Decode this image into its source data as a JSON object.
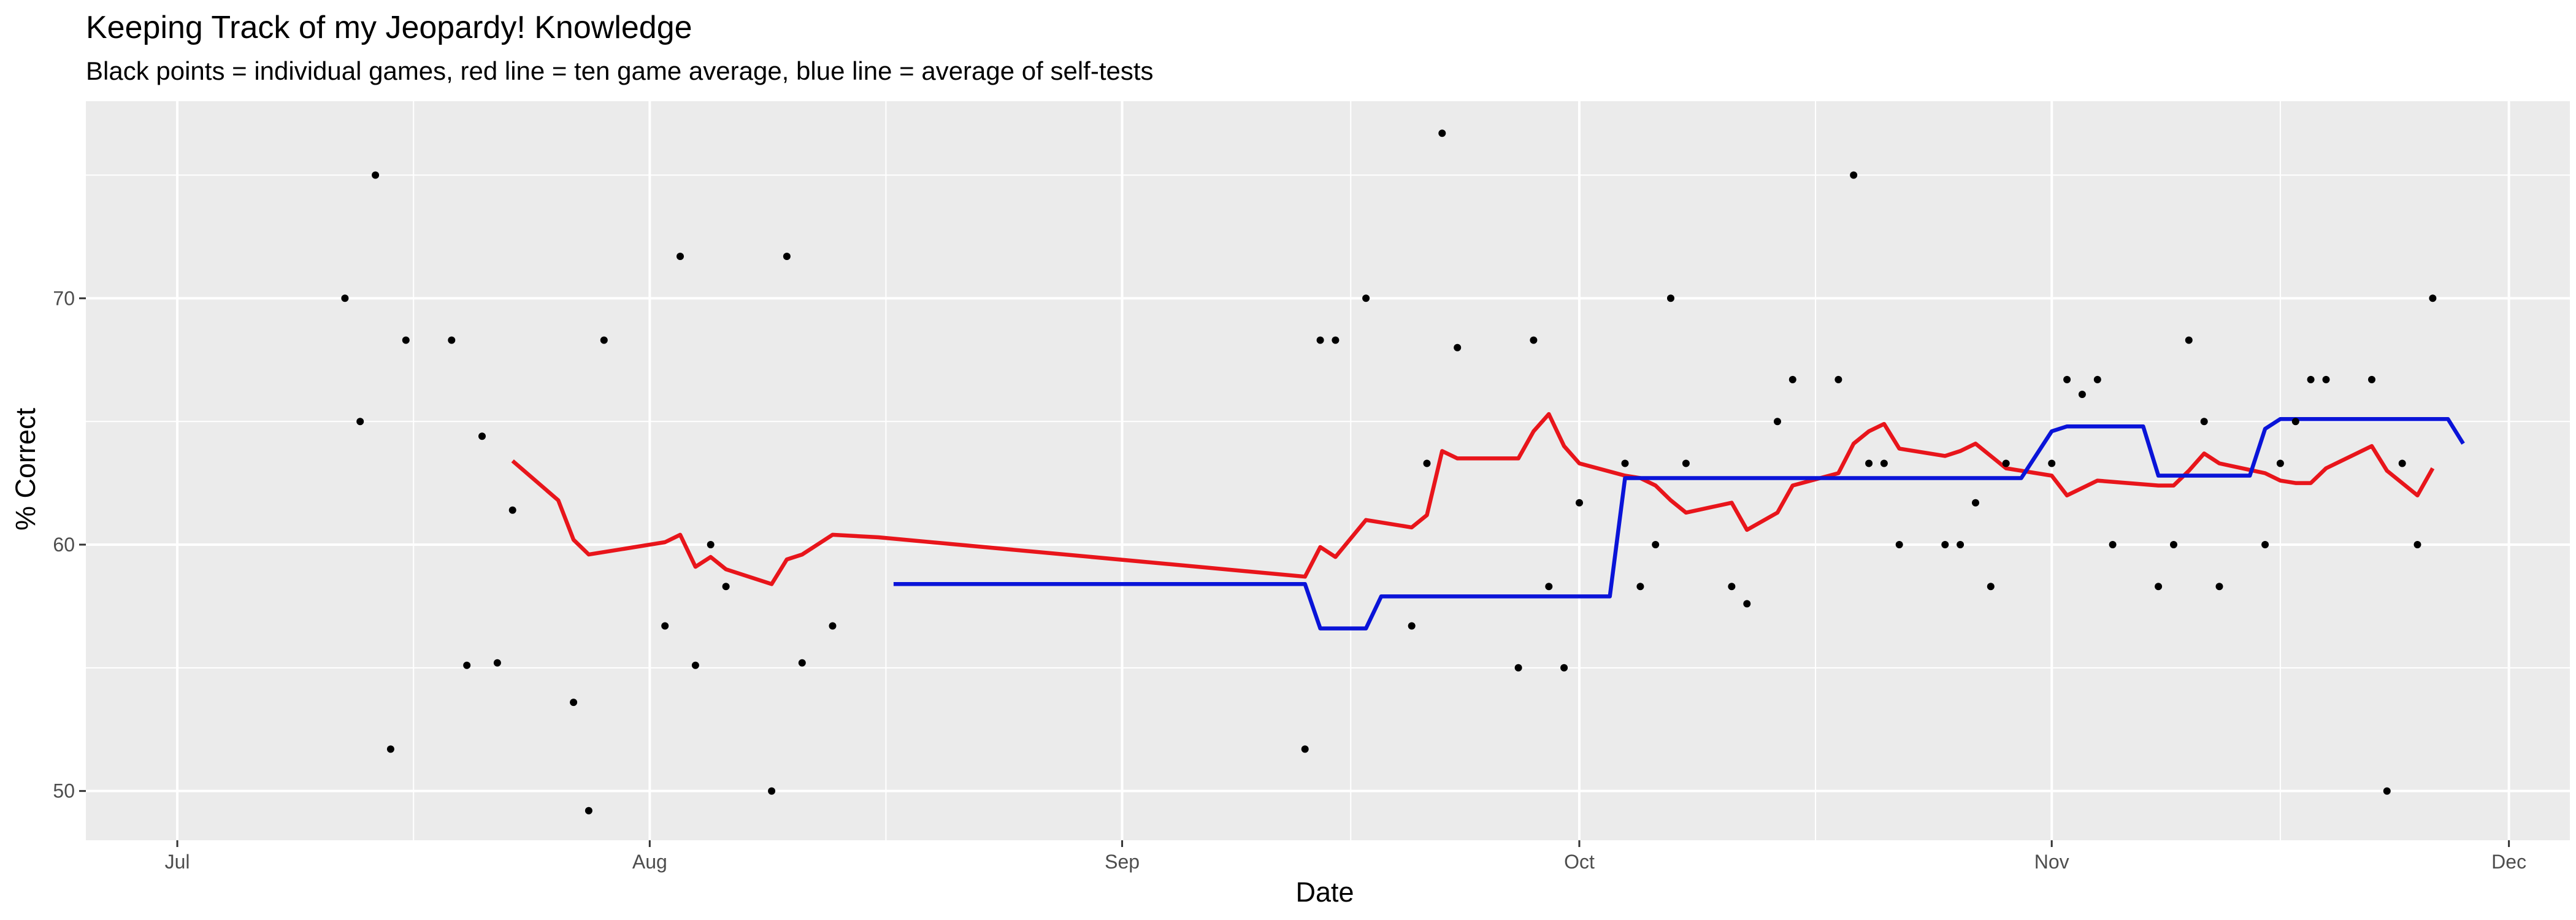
{
  "chart_data": {
    "type": "scatter",
    "title": "Keeping Track of my Jeopardy! Knowledge",
    "subtitle": "Black points = individual games, red line = ten game average, blue line = average of self-tests",
    "xlabel": "Date",
    "ylabel": "% Correct",
    "xlim": [
      "2023-06-25",
      "2023-12-05"
    ],
    "ylim": [
      48,
      78
    ],
    "x_ticks": [
      {
        "label": "Jul",
        "date": "2023-07-01"
      },
      {
        "label": "Aug",
        "date": "2023-08-01"
      },
      {
        "label": "Sep",
        "date": "2023-09-01"
      },
      {
        "label": "Oct",
        "date": "2023-10-01"
      },
      {
        "label": "Nov",
        "date": "2023-11-01"
      },
      {
        "label": "Dec",
        "date": "2023-12-01"
      }
    ],
    "y_ticks": [
      50,
      60,
      70
    ],
    "grid": true,
    "background_color": "#ebebeb",
    "grid_color": "#ffffff",
    "colors": {
      "points": "#000000",
      "ten_game_average": "#e8151b",
      "self_test_average": "#0a14d8"
    },
    "series": [
      {
        "kind": "points",
        "points": [
          [
            "2023-07-12",
            70.0
          ],
          [
            "2023-07-13",
            65.0
          ],
          [
            "2023-07-14",
            75.0
          ],
          [
            "2023-07-15",
            51.7
          ],
          [
            "2023-07-16",
            68.3
          ],
          [
            "2023-07-19",
            68.3
          ],
          [
            "2023-07-20",
            55.1
          ],
          [
            "2023-07-21",
            64.4
          ],
          [
            "2023-07-22",
            55.2
          ],
          [
            "2023-07-23",
            61.4
          ],
          [
            "2023-07-27",
            53.6
          ],
          [
            "2023-07-28",
            49.2
          ],
          [
            "2023-07-29",
            68.3
          ],
          [
            "2023-08-02",
            56.7
          ],
          [
            "2023-08-03",
            71.7
          ],
          [
            "2023-08-04",
            55.1
          ],
          [
            "2023-08-05",
            60.0
          ],
          [
            "2023-08-06",
            58.3
          ],
          [
            "2023-08-09",
            50.0
          ],
          [
            "2023-08-10",
            71.7
          ],
          [
            "2023-08-11",
            55.2
          ],
          [
            "2023-08-13",
            56.7
          ],
          [
            "2023-09-13",
            51.7
          ],
          [
            "2023-09-14",
            68.3
          ],
          [
            "2023-09-15",
            68.3
          ],
          [
            "2023-09-17",
            70.0
          ],
          [
            "2023-09-20",
            56.7
          ],
          [
            "2023-09-21",
            63.3
          ],
          [
            "2023-09-22",
            76.7
          ],
          [
            "2023-09-23",
            68.0
          ],
          [
            "2023-09-27",
            55.0
          ],
          [
            "2023-09-28",
            68.3
          ],
          [
            "2023-09-29",
            58.3
          ],
          [
            "2023-09-30",
            55.0
          ],
          [
            "2023-10-01",
            61.7
          ],
          [
            "2023-10-04",
            63.3
          ],
          [
            "2023-10-05",
            58.3
          ],
          [
            "2023-10-06",
            60.0
          ],
          [
            "2023-10-07",
            70.0
          ],
          [
            "2023-10-08",
            63.3
          ],
          [
            "2023-10-11",
            58.3
          ],
          [
            "2023-10-12",
            57.6
          ],
          [
            "2023-10-14",
            65.0
          ],
          [
            "2023-10-15",
            66.7
          ],
          [
            "2023-10-18",
            66.7
          ],
          [
            "2023-10-19",
            75.0
          ],
          [
            "2023-10-20",
            63.3
          ],
          [
            "2023-10-21",
            63.3
          ],
          [
            "2023-10-22",
            60.0
          ],
          [
            "2023-10-25",
            60.0
          ],
          [
            "2023-10-26",
            60.0
          ],
          [
            "2023-10-27",
            61.7
          ],
          [
            "2023-10-28",
            58.3
          ],
          [
            "2023-10-29",
            63.3
          ],
          [
            "2023-11-01",
            63.3
          ],
          [
            "2023-11-02",
            66.7
          ],
          [
            "2023-11-03",
            66.1
          ],
          [
            "2023-11-04",
            66.7
          ],
          [
            "2023-11-05",
            60.0
          ],
          [
            "2023-11-08",
            58.3
          ],
          [
            "2023-11-09",
            60.0
          ],
          [
            "2023-11-10",
            68.3
          ],
          [
            "2023-11-11",
            65.0
          ],
          [
            "2023-11-12",
            58.3
          ],
          [
            "2023-11-15",
            60.0
          ],
          [
            "2023-11-16",
            63.3
          ],
          [
            "2023-11-17",
            65.0
          ],
          [
            "2023-11-18",
            66.7
          ],
          [
            "2023-11-19",
            66.7
          ],
          [
            "2023-11-22",
            66.7
          ],
          [
            "2023-11-23",
            50.0
          ],
          [
            "2023-11-24",
            63.3
          ],
          [
            "2023-11-25",
            60.0
          ],
          [
            "2023-11-26",
            70.0
          ]
        ]
      },
      {
        "kind": "line",
        "color": "#e8151b",
        "points": [
          [
            "2023-07-23",
            63.4
          ],
          [
            "2023-07-26",
            61.8
          ],
          [
            "2023-07-27",
            60.2
          ],
          [
            "2023-07-28",
            59.6
          ],
          [
            "2023-08-02",
            60.1
          ],
          [
            "2023-08-03",
            60.4
          ],
          [
            "2023-08-04",
            59.1
          ],
          [
            "2023-08-05",
            59.5
          ],
          [
            "2023-08-06",
            59.0
          ],
          [
            "2023-08-09",
            58.4
          ],
          [
            "2023-08-10",
            59.4
          ],
          [
            "2023-08-11",
            59.6
          ],
          [
            "2023-08-13",
            60.4
          ],
          [
            "2023-08-16",
            60.3
          ],
          [
            "2023-09-13",
            58.7
          ],
          [
            "2023-09-14",
            59.9
          ],
          [
            "2023-09-15",
            59.5
          ],
          [
            "2023-09-17",
            61.0
          ],
          [
            "2023-09-20",
            60.7
          ],
          [
            "2023-09-21",
            61.2
          ],
          [
            "2023-09-22",
            63.8
          ],
          [
            "2023-09-23",
            63.5
          ],
          [
            "2023-09-27",
            63.5
          ],
          [
            "2023-09-28",
            64.6
          ],
          [
            "2023-09-29",
            65.3
          ],
          [
            "2023-09-30",
            64.0
          ],
          [
            "2023-10-01",
            63.3
          ],
          [
            "2023-10-04",
            62.8
          ],
          [
            "2023-10-05",
            62.7
          ],
          [
            "2023-10-06",
            62.4
          ],
          [
            "2023-10-07",
            61.8
          ],
          [
            "2023-10-08",
            61.3
          ],
          [
            "2023-10-11",
            61.7
          ],
          [
            "2023-10-12",
            60.6
          ],
          [
            "2023-10-14",
            61.3
          ],
          [
            "2023-10-15",
            62.4
          ],
          [
            "2023-10-18",
            62.9
          ],
          [
            "2023-10-19",
            64.1
          ],
          [
            "2023-10-20",
            64.6
          ],
          [
            "2023-10-21",
            64.9
          ],
          [
            "2023-10-22",
            63.9
          ],
          [
            "2023-10-25",
            63.6
          ],
          [
            "2023-10-26",
            63.8
          ],
          [
            "2023-10-27",
            64.1
          ],
          [
            "2023-10-28",
            63.6
          ],
          [
            "2023-10-29",
            63.1
          ],
          [
            "2023-11-01",
            62.8
          ],
          [
            "2023-11-02",
            62.0
          ],
          [
            "2023-11-04",
            62.6
          ],
          [
            "2023-11-08",
            62.4
          ],
          [
            "2023-11-09",
            62.4
          ],
          [
            "2023-11-10",
            63.0
          ],
          [
            "2023-11-11",
            63.7
          ],
          [
            "2023-11-12",
            63.3
          ],
          [
            "2023-11-15",
            62.9
          ],
          [
            "2023-11-16",
            62.6
          ],
          [
            "2023-11-17",
            62.5
          ],
          [
            "2023-11-18",
            62.5
          ],
          [
            "2023-11-19",
            63.1
          ],
          [
            "2023-11-22",
            64.0
          ],
          [
            "2023-11-23",
            63.0
          ],
          [
            "2023-11-25",
            62.0
          ],
          [
            "2023-11-26",
            63.1
          ]
        ]
      },
      {
        "kind": "line",
        "color": "#0a14d8",
        "points": [
          [
            "2023-08-17",
            58.4
          ],
          [
            "2023-09-13",
            58.4
          ],
          [
            "2023-09-14",
            56.6
          ],
          [
            "2023-09-17",
            56.6
          ],
          [
            "2023-09-18",
            57.9
          ],
          [
            "2023-10-03",
            57.9
          ],
          [
            "2023-10-04",
            62.7
          ],
          [
            "2023-10-30",
            62.7
          ],
          [
            "2023-11-01",
            64.6
          ],
          [
            "2023-11-02",
            64.8
          ],
          [
            "2023-11-07",
            64.8
          ],
          [
            "2023-11-08",
            62.8
          ],
          [
            "2023-11-14",
            62.8
          ],
          [
            "2023-11-15",
            64.7
          ],
          [
            "2023-11-16",
            65.1
          ],
          [
            "2023-11-27",
            65.1
          ],
          [
            "2023-11-28",
            64.1
          ]
        ]
      }
    ]
  }
}
